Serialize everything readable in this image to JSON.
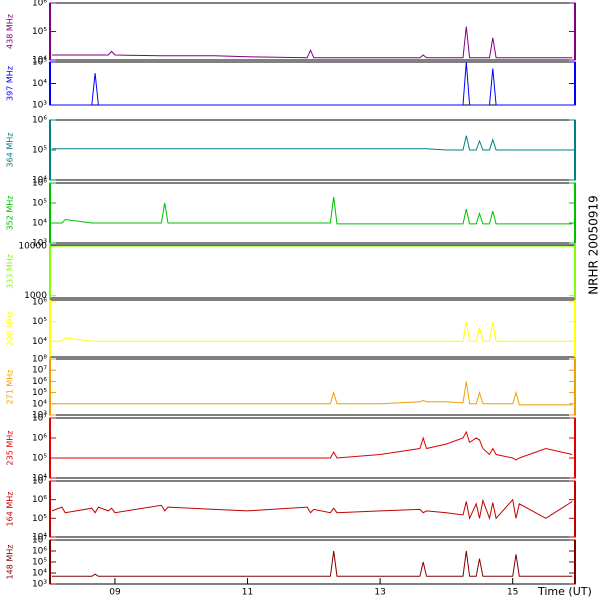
{
  "title": "NRHR 20050919",
  "x_axis": {
    "label": "Time (UT)",
    "xlim": [
      8.02,
      15.94
    ],
    "xticks": [
      {
        "value": 9,
        "label": "09"
      },
      11,
      13,
      15
    ],
    "x": [
      8.05,
      8.2,
      8.25,
      8.65,
      8.7,
      8.75,
      8.9,
      8.95,
      9.0,
      9.7,
      9.75,
      9.8,
      10.5,
      11.0,
      11.9,
      11.95,
      12.0,
      12.25,
      12.3,
      12.35,
      13.0,
      13.6,
      13.65,
      13.7,
      14.0,
      14.25,
      14.3,
      14.35,
      14.45,
      14.5,
      14.55,
      14.65,
      14.7,
      14.75,
      15.0,
      15.05,
      15.1,
      15.5,
      15.9
    ]
  },
  "chart_data": [
    {
      "type": "line",
      "ylabel": "438 MHz",
      "color": "#800080",
      "log": true,
      "ylim": [
        10000,
        1000000
      ],
      "yticks": [
        {
          "value": 10000,
          "label": "10⁴"
        },
        {
          "value": 100000,
          "label": "10⁵"
        },
        {
          "value": 1000000,
          "label": "10⁶"
        }
      ],
      "values": [
        15000,
        15000,
        15000,
        15000,
        15000,
        15000,
        15000,
        20000,
        15000,
        14000,
        14000,
        14000,
        14000,
        13000,
        12000,
        22000,
        12000,
        12000,
        12000,
        12000,
        12000,
        12000,
        15000,
        12000,
        12000,
        12000,
        150000,
        12000,
        12000,
        12000,
        12000,
        12000,
        60000,
        12000,
        12000,
        12000,
        12000,
        12000,
        12000
      ]
    },
    {
      "type": "line",
      "ylabel": "397 MHz",
      "color": "#0000ff",
      "log": true,
      "ylim": [
        1000,
        100000
      ],
      "yticks": [
        {
          "value": 1000,
          "label": "10³"
        },
        {
          "value": 10000,
          "label": "10⁴"
        },
        {
          "value": 100000,
          "label": "10⁵"
        }
      ],
      "values": [
        1000,
        1000,
        1000,
        1000,
        30000,
        1000,
        1000,
        1000,
        1000,
        1000,
        1000,
        1000,
        1000,
        1000,
        1000,
        1000,
        1000,
        1000,
        1000,
        1000,
        1000,
        1000,
        1000,
        1000,
        1000,
        1000,
        100000,
        1000,
        1000,
        1000,
        1000,
        1000,
        50000,
        1000,
        1000,
        1000,
        1000,
        1000,
        1000
      ]
    },
    {
      "type": "line",
      "ylabel": "364 MHz",
      "color": "#008080",
      "log": true,
      "ylim": [
        10000,
        1000000
      ],
      "yticks": [
        {
          "value": 10000,
          "label": "10⁴"
        },
        {
          "value": 100000,
          "label": "10⁵"
        },
        {
          "value": 1000000,
          "label": "10⁶"
        }
      ],
      "values": [
        110000,
        110000,
        110000,
        110000,
        110000,
        110000,
        110000,
        110000,
        110000,
        110000,
        110000,
        110000,
        110000,
        110000,
        110000,
        110000,
        110000,
        110000,
        110000,
        110000,
        110000,
        110000,
        110000,
        110000,
        100000,
        100000,
        300000,
        100000,
        100000,
        200000,
        100000,
        100000,
        220000,
        100000,
        100000,
        100000,
        100000,
        100000,
        100000
      ]
    },
    {
      "type": "line",
      "ylabel": "352 MHz",
      "color": "#00c000",
      "log": true,
      "ylim": [
        1000,
        1000000
      ],
      "yticks": [
        {
          "value": 1000,
          "label": "10³"
        },
        {
          "value": 10000,
          "label": "10⁴"
        },
        {
          "value": 100000,
          "label": "10⁵"
        },
        {
          "value": 1000000,
          "label": "10⁶"
        }
      ],
      "values": [
        10000,
        10000,
        15000,
        10000,
        10000,
        10000,
        10000,
        10000,
        10000,
        10000,
        100000,
        10000,
        10000,
        10000,
        10000,
        10000,
        10000,
        10000,
        200000,
        9000,
        9000,
        9000,
        9000,
        9000,
        9000,
        9000,
        50000,
        9000,
        9000,
        30000,
        9000,
        9000,
        40000,
        9000,
        9000,
        9000,
        9000,
        9000,
        9000
      ]
    },
    {
      "type": "line",
      "ylabel": "333 MHz",
      "color": "#80ff00",
      "log": true,
      "ylim": [
        900,
        10500
      ],
      "yticks": [
        1000,
        10000
      ],
      "values": [
        10000,
        10000,
        10000,
        10000,
        10000,
        10000,
        10000,
        10000,
        10000,
        10000,
        10000,
        10000,
        10000,
        10000,
        10000,
        10000,
        10000,
        10000,
        10000,
        10000,
        10000,
        10000,
        10000,
        10000,
        10000,
        10000,
        10000,
        10000,
        10000,
        10000,
        10000,
        10000,
        10000,
        10000,
        10000,
        10000,
        10000,
        10000,
        10000
      ]
    },
    {
      "type": "line",
      "ylabel": "298 MHz",
      "color": "#ffff00",
      "log": true,
      "ylim": [
        1600,
        1250000
      ],
      "yticks": [
        {
          "value": 10000,
          "label": "10⁴"
        },
        {
          "value": 100000,
          "label": "10⁵"
        },
        {
          "value": 1000000,
          "label": "10⁶"
        }
      ],
      "values": [
        10000,
        10000,
        15000,
        10000,
        10000,
        10000,
        10000,
        10000,
        10000,
        10000,
        10000,
        10000,
        10000,
        10000,
        10000,
        10000,
        10000,
        10000,
        10000,
        10000,
        10000,
        10000,
        10000,
        10000,
        10000,
        10000,
        100000,
        10000,
        10000,
        50000,
        10000,
        10000,
        100000,
        10000,
        10000,
        10000,
        10000,
        10000,
        10000
      ]
    },
    {
      "type": "line",
      "ylabel": "271 MHz",
      "color": "#f0a000",
      "log": true,
      "ylim": [
        1000,
        100000000
      ],
      "yticks": [
        {
          "value": 1000,
          "label": "10³"
        },
        {
          "value": 10000,
          "label": "10⁴"
        },
        {
          "value": 100000,
          "label": "10⁵"
        },
        {
          "value": 1000000,
          "label": "10⁶"
        },
        {
          "value": 10000000,
          "label": "10⁷"
        },
        {
          "value": 100000000,
          "label": "10⁸"
        }
      ],
      "values": [
        10000,
        10000,
        10000,
        10000,
        10000,
        10000,
        10000,
        10000,
        10000,
        10000,
        10000,
        10000,
        10000,
        10000,
        10000,
        10000,
        10000,
        10000,
        100000,
        10000,
        10000,
        15000,
        20000,
        15000,
        15000,
        12000,
        1000000,
        10000,
        10000,
        100000,
        10000,
        10000,
        10000,
        10000,
        10000,
        100000,
        8000,
        8000,
        8000
      ]
    },
    {
      "type": "line",
      "ylabel": "235 MHz",
      "color": "#e00000",
      "log": true,
      "ylim": [
        10000,
        10000000
      ],
      "yticks": [
        {
          "value": 10000,
          "label": "10⁴"
        },
        {
          "value": 100000,
          "label": "10⁵"
        },
        {
          "value": 1000000,
          "label": "10⁶"
        },
        {
          "value": 10000000,
          "label": "10⁷"
        }
      ],
      "values": [
        100000,
        100000,
        100000,
        100000,
        100000,
        100000,
        100000,
        100000,
        100000,
        100000,
        100000,
        100000,
        100000,
        100000,
        100000,
        100000,
        100000,
        100000,
        200000,
        100000,
        150000,
        300000,
        1000000,
        300000,
        500000,
        1000000,
        2000000,
        600000,
        1000000,
        800000,
        300000,
        150000,
        300000,
        150000,
        100000,
        80000,
        100000,
        300000,
        150000
      ]
    },
    {
      "type": "line",
      "ylabel": "164 MHz",
      "color": "#c00000",
      "log": true,
      "ylim": [
        10000,
        10000000
      ],
      "yticks": [
        {
          "value": 10000,
          "label": "10⁴"
        },
        {
          "value": 100000,
          "label": "10⁵"
        },
        {
          "value": 1000000,
          "label": "10⁶"
        },
        {
          "value": 10000000,
          "label": "10⁷"
        }
      ],
      "values": [
        250000,
        400000,
        200000,
        350000,
        200000,
        400000,
        250000,
        350000,
        200000,
        500000,
        250000,
        400000,
        300000,
        250000,
        400000,
        200000,
        300000,
        200000,
        350000,
        200000,
        250000,
        300000,
        200000,
        250000,
        200000,
        150000,
        800000,
        100000,
        600000,
        100000,
        900000,
        100000,
        700000,
        100000,
        1000000,
        100000,
        600000,
        100000,
        800000
      ]
    },
    {
      "type": "line",
      "ylabel": "148 MHz",
      "color": "#800000",
      "log": true,
      "ylim": [
        1000,
        10000000
      ],
      "yticks": [
        {
          "value": 1000,
          "label": "10³"
        },
        {
          "value": 10000,
          "label": "10⁴"
        },
        {
          "value": 100000,
          "label": "10⁵"
        },
        {
          "value": 1000000,
          "label": "10⁶"
        },
        {
          "value": 10000000,
          "label": "10⁷"
        }
      ],
      "values": [
        5000,
        5000,
        5000,
        5000,
        8000,
        5000,
        5000,
        5000,
        5000,
        5000,
        5000,
        5000,
        5000,
        5000,
        5000,
        5000,
        5000,
        5000,
        1000000,
        5000,
        5000,
        5000,
        100000,
        5000,
        5000,
        5000,
        1000000,
        5000,
        5000,
        200000,
        5000,
        5000,
        5000,
        5000,
        5000,
        500000,
        5000,
        5000,
        5000
      ]
    }
  ]
}
